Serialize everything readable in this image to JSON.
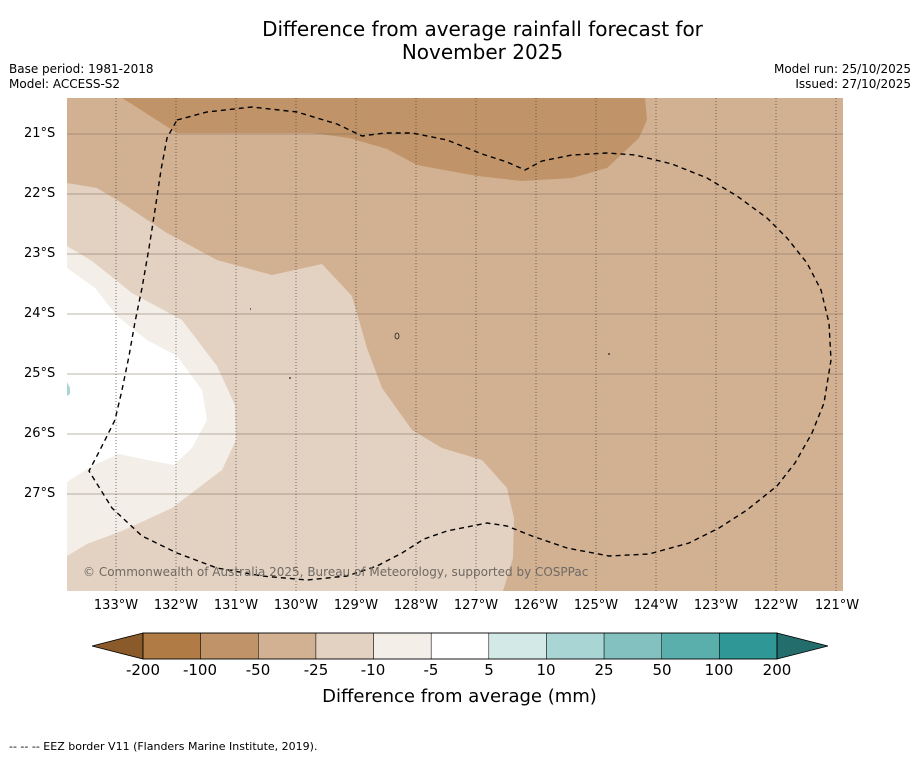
{
  "title": {
    "line1": "Difference from average rainfall forecast for",
    "line2": "November 2025"
  },
  "meta_left": {
    "base_period": "Base period: 1981-2018",
    "model": "Model: ACCESS-S2"
  },
  "meta_right": {
    "model_run": "Model run: 25/10/2025",
    "issued": "Issued: 27/10/2025"
  },
  "map": {
    "latitude_labels": [
      "21°S",
      "22°S",
      "23°S",
      "24°S",
      "25°S",
      "26°S",
      "27°S"
    ],
    "longitude_labels": [
      "133°W",
      "132°W",
      "131°W",
      "130°W",
      "129°W",
      "128°W",
      "127°W",
      "126°W",
      "125°W",
      "124°W",
      "123°W",
      "122°W",
      "121°W"
    ],
    "copyright": "© Commonwealth of Australia 2025, Bureau of Meteorology, supported by COSPPac",
    "colors": {
      "neg200_100": "#b07b45",
      "neg100_50": "#c09468",
      "neg50_25": "#d2b193",
      "neg25_10": "#e3d1c1",
      "neg10_5": "#f3eee8",
      "neg5_5": "#ffffff"
    }
  },
  "colorbar": {
    "ticks": [
      "-200",
      "-100",
      "-50",
      "-25",
      "-10",
      "-5",
      "5",
      "10",
      "25",
      "50",
      "100",
      "200"
    ],
    "colors": [
      "#b07b45",
      "#c09468",
      "#d2b193",
      "#e3d1c1",
      "#f3eee8",
      "#ffffff",
      "#d3e9e8",
      "#a9d6d5",
      "#82c1bf",
      "#5aaeac",
      "#2f9896"
    ],
    "under_color": "#8b5a2b",
    "over_color": "#236e6c",
    "label": "Difference from average (mm)"
  },
  "footnote": "--  --  -- EEZ border V11 (Flanders Marine Institute, 2019)."
}
